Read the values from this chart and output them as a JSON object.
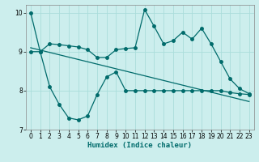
{
  "xlabel": "Humidex (Indice chaleur)",
  "background_color": "#cceeed",
  "grid_color": "#aadddb",
  "line_color": "#006b6b",
  "xlim": [
    -0.5,
    23.5
  ],
  "ylim": [
    7,
    10.2
  ],
  "yticks": [
    7,
    8,
    9,
    10
  ],
  "xticks": [
    0,
    1,
    2,
    3,
    4,
    5,
    6,
    7,
    8,
    9,
    10,
    11,
    12,
    13,
    14,
    15,
    16,
    17,
    18,
    19,
    20,
    21,
    22,
    23
  ],
  "line1_x": [
    0,
    1,
    2,
    3,
    4,
    5,
    6,
    7,
    8,
    9,
    10,
    11,
    12,
    13,
    14,
    15,
    16,
    17,
    18,
    19,
    20,
    21,
    22,
    23
  ],
  "line1_y": [
    10.0,
    9.0,
    9.2,
    9.18,
    9.15,
    9.12,
    9.05,
    8.85,
    8.85,
    9.05,
    9.08,
    9.1,
    10.08,
    9.65,
    9.2,
    9.28,
    9.5,
    9.32,
    9.6,
    9.2,
    8.75,
    8.3,
    8.05,
    7.92
  ],
  "line2_x": [
    0,
    1,
    2,
    3,
    4,
    5,
    6,
    7,
    8,
    9,
    10,
    11,
    12,
    13,
    14,
    15,
    16,
    17,
    18,
    19,
    20,
    21,
    22,
    23
  ],
  "line2_y": [
    9.1,
    9.04,
    8.98,
    8.92,
    8.86,
    8.8,
    8.74,
    8.68,
    8.62,
    8.56,
    8.5,
    8.44,
    8.38,
    8.32,
    8.26,
    8.2,
    8.14,
    8.08,
    8.02,
    7.96,
    7.9,
    7.84,
    7.78,
    7.72
  ],
  "line3_x": [
    0,
    1,
    2,
    3,
    4,
    5,
    6,
    7,
    8,
    9,
    10,
    11,
    12,
    13,
    14,
    15,
    16,
    17,
    18,
    19,
    20,
    21,
    22,
    23
  ],
  "line3_y": [
    9.0,
    9.0,
    8.1,
    7.65,
    7.3,
    7.25,
    7.35,
    7.9,
    8.35,
    8.48,
    8.0,
    8.0,
    8.0,
    8.0,
    8.0,
    8.0,
    8.0,
    8.0,
    8.0,
    8.0,
    8.0,
    7.95,
    7.92,
    7.9
  ],
  "marker_size": 2.5,
  "line_width": 0.9
}
